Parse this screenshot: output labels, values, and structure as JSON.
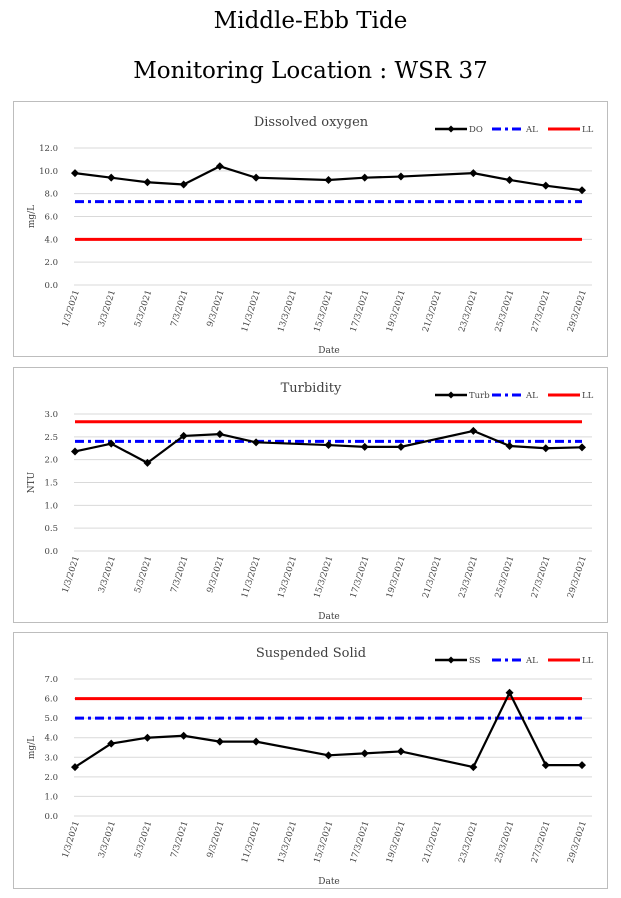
{
  "page": {
    "title_line1": "Middle-Ebb Tide",
    "title_line2": "Monitoring Location : WSR 37"
  },
  "chart_data": [
    {
      "type": "line",
      "title": "Dissolved oxygen",
      "xlabel": "Date",
      "ylabel": "mg/L",
      "ylim": [
        0,
        12
      ],
      "yticks": [
        "0.0",
        "2.0",
        "4.0",
        "6.0",
        "8.0",
        "10.0",
        "12.0"
      ],
      "x_tick_labels": [
        "1/3/2021",
        "3/3/2021",
        "5/3/2021",
        "7/3/2021",
        "9/3/2021",
        "11/3/2021",
        "13/3/2021",
        "15/3/2021",
        "17/3/2021",
        "19/3/2021",
        "21/3/2021",
        "23/3/2021",
        "25/3/2021",
        "27/3/2021",
        "29/3/2021"
      ],
      "grid": true,
      "legend_position": "top-right",
      "series": [
        {
          "name": "DO",
          "style": "line-marker",
          "color": "#000000",
          "x": [
            "1/3/2021",
            "3/3/2021",
            "5/3/2021",
            "7/3/2021",
            "9/3/2021",
            "11/3/2021",
            "15/3/2021",
            "17/3/2021",
            "19/3/2021",
            "23/3/2021",
            "25/3/2021",
            "27/3/2021",
            "29/3/2021"
          ],
          "values": [
            9.8,
            9.4,
            9.0,
            8.8,
            10.4,
            9.4,
            9.2,
            9.4,
            9.5,
            9.8,
            9.2,
            8.7,
            8.3
          ]
        },
        {
          "name": "AL",
          "style": "dash-dot",
          "color": "#0000ff",
          "x_range": [
            "1/3/2021",
            "29/3/2021"
          ],
          "value": 7.3
        },
        {
          "name": "LL",
          "style": "solid",
          "color": "#ff0000",
          "x_range": [
            "1/3/2021",
            "29/3/2021"
          ],
          "value": 4.0
        }
      ]
    },
    {
      "type": "line",
      "title": "Turbidity",
      "xlabel": "Date",
      "ylabel": "NTU",
      "ylim": [
        0,
        3
      ],
      "yticks": [
        "0.0",
        "0.5",
        "1.0",
        "1.5",
        "2.0",
        "2.5",
        "3.0"
      ],
      "x_tick_labels": [
        "1/3/2021",
        "3/3/2021",
        "5/3/2021",
        "7/3/2021",
        "9/3/2021",
        "11/3/2021",
        "13/3/2021",
        "15/3/2021",
        "17/3/2021",
        "19/3/2021",
        "21/3/2021",
        "23/3/2021",
        "25/3/2021",
        "27/3/2021",
        "29/3/2021"
      ],
      "grid": true,
      "legend_position": "top-right",
      "series": [
        {
          "name": "Turb",
          "style": "line-marker",
          "color": "#000000",
          "x": [
            "1/3/2021",
            "3/3/2021",
            "5/3/2021",
            "7/3/2021",
            "9/3/2021",
            "11/3/2021",
            "15/3/2021",
            "17/3/2021",
            "19/3/2021",
            "23/3/2021",
            "25/3/2021",
            "27/3/2021",
            "29/3/2021"
          ],
          "values": [
            2.18,
            2.35,
            1.93,
            2.52,
            2.56,
            2.38,
            2.32,
            2.28,
            2.28,
            2.63,
            2.3,
            2.25,
            2.27
          ]
        },
        {
          "name": "AL",
          "style": "dash-dot",
          "color": "#0000ff",
          "x_range": [
            "1/3/2021",
            "29/3/2021"
          ],
          "value": 2.4
        },
        {
          "name": "LL",
          "style": "solid",
          "color": "#ff0000",
          "x_range": [
            "1/3/2021",
            "29/3/2021"
          ],
          "value": 2.83
        }
      ]
    },
    {
      "type": "line",
      "title": "Suspended Solid",
      "xlabel": "Date",
      "ylabel": "mg/L",
      "ylim": [
        0,
        7
      ],
      "yticks": [
        "0.0",
        "1.0",
        "2.0",
        "3.0",
        "4.0",
        "5.0",
        "6.0",
        "7.0"
      ],
      "x_tick_labels": [
        "1/3/2021",
        "3/3/2021",
        "5/3/2021",
        "7/3/2021",
        "9/3/2021",
        "11/3/2021",
        "13/3/2021",
        "15/3/2021",
        "17/3/2021",
        "19/3/2021",
        "21/3/2021",
        "23/3/2021",
        "25/3/2021",
        "27/3/2021",
        "29/3/2021"
      ],
      "grid": true,
      "legend_position": "top-right",
      "series": [
        {
          "name": "SS",
          "style": "line-marker",
          "color": "#000000",
          "x": [
            "1/3/2021",
            "3/3/2021",
            "5/3/2021",
            "7/3/2021",
            "9/3/2021",
            "11/3/2021",
            "15/3/2021",
            "17/3/2021",
            "19/3/2021",
            "23/3/2021",
            "25/3/2021",
            "27/3/2021",
            "29/3/2021"
          ],
          "values": [
            2.5,
            3.7,
            4.0,
            4.1,
            3.8,
            3.8,
            3.1,
            3.2,
            3.3,
            2.5,
            6.3,
            2.6,
            2.6
          ]
        },
        {
          "name": "AL",
          "style": "dash-dot",
          "color": "#0000ff",
          "x_range": [
            "1/3/2021",
            "29/3/2021"
          ],
          "value": 5.0
        },
        {
          "name": "LL",
          "style": "solid",
          "color": "#ff0000",
          "x_range": [
            "1/3/2021",
            "29/3/2021"
          ],
          "value": 6.0
        }
      ]
    }
  ]
}
